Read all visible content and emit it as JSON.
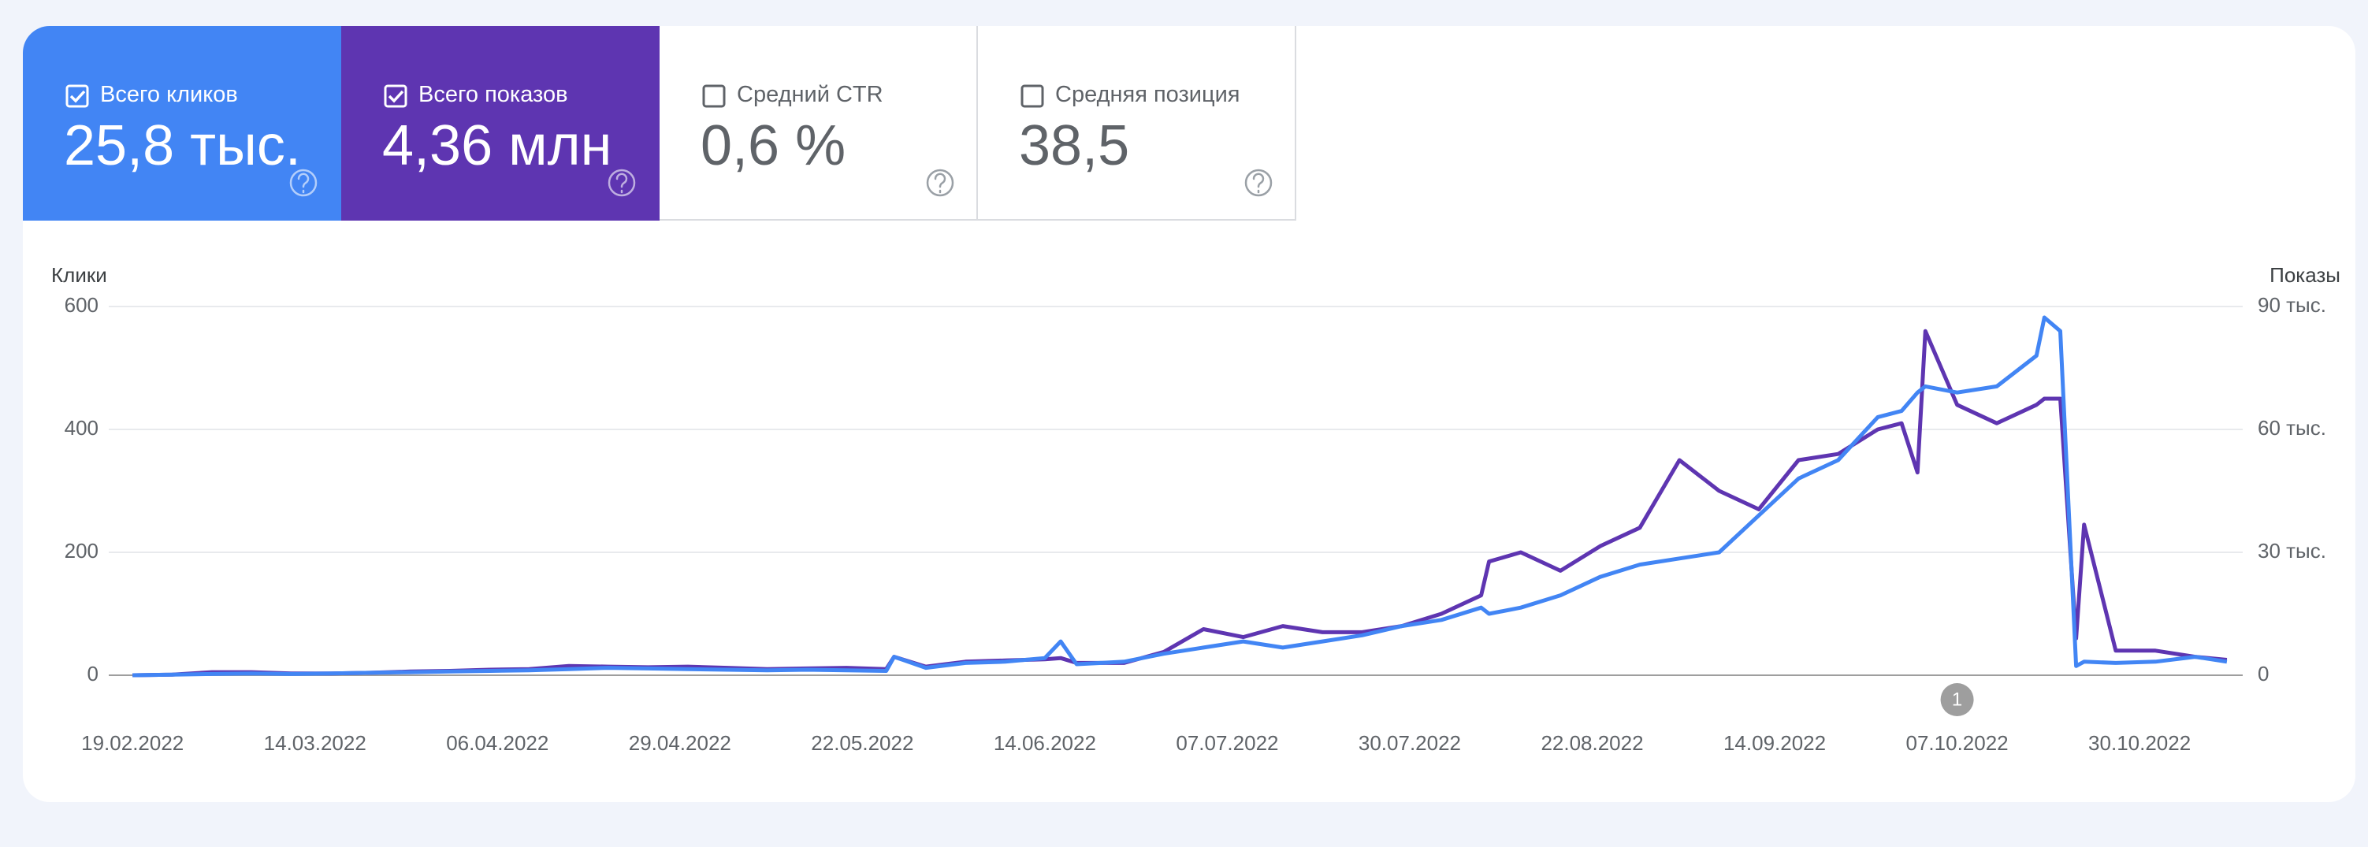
{
  "cards": [
    {
      "label": "Всего кликов",
      "value": "25,8 тыс.",
      "checked": true
    },
    {
      "label": "Всего показов",
      "value": "4,36 млн",
      "checked": true
    },
    {
      "label": "Средний CTR",
      "value": "0,6 %",
      "checked": false
    },
    {
      "label": "Средняя позиция",
      "value": "38,5",
      "checked": false
    }
  ],
  "chart_data": {
    "type": "line",
    "y_label": "Клики",
    "y2_label": "Показы",
    "x": [
      "19.02.2022",
      "24.02.2022",
      "01.03.2022",
      "06.03.2022",
      "11.03.2022",
      "16.03.2022",
      "21.03.2022",
      "26.03.2022",
      "31.03.2022",
      "05.04.2022",
      "10.04.2022",
      "15.04.2022",
      "20.04.2022",
      "25.04.2022",
      "30.04.2022",
      "05.05.2022",
      "10.05.2022",
      "15.05.2022",
      "20.05.2022",
      "25.05.2022",
      "26.05.2022",
      "30.05.2022",
      "04.06.2022",
      "09.06.2022",
      "14.06.2022",
      "16.06.2022",
      "18.06.2022",
      "24.06.2022",
      "29.06.2022",
      "04.07.2022",
      "09.07.2022",
      "14.07.2022",
      "19.07.2022",
      "24.07.2022",
      "29.07.2022",
      "03.08.2022",
      "08.08.2022",
      "09.08.2022",
      "13.08.2022",
      "18.08.2022",
      "23.08.2022",
      "28.08.2022",
      "02.09.2022",
      "07.09.2022",
      "12.09.2022",
      "17.09.2022",
      "22.09.2022",
      "27.09.2022",
      "30.09.2022",
      "02.10.2022",
      "03.10.2022",
      "07.10.2022",
      "12.10.2022",
      "17.10.2022",
      "18.10.2022",
      "20.10.2022",
      "22.10.2022",
      "23.10.2022",
      "27.10.2022",
      "01.11.2022",
      "06.11.2022",
      "10.11.2022"
    ],
    "series": [
      {
        "name": "Всего кликов",
        "color": "#4285f4",
        "values": [
          0,
          1,
          2,
          3,
          2,
          3,
          4,
          5,
          6,
          7,
          8,
          10,
          12,
          11,
          10,
          9,
          8,
          9,
          8,
          7,
          30,
          12,
          20,
          22,
          28,
          55,
          18,
          22,
          35,
          45,
          55,
          45,
          55,
          65,
          80,
          90,
          110,
          100,
          110,
          130,
          160,
          180,
          190,
          200,
          260,
          320,
          350,
          420,
          430,
          460,
          470,
          460,
          470,
          520,
          582,
          560,
          15,
          22,
          20,
          22,
          30,
          22
        ]
      },
      {
        "name": "Всего показов",
        "color": "#5e35b1",
        "axis": "y2",
        "values": [
          0,
          150,
          750,
          750,
          450,
          450,
          600,
          900,
          1050,
          1350,
          1500,
          2250,
          2100,
          1950,
          2100,
          1800,
          1500,
          1650,
          1800,
          1500,
          4500,
          2100,
          3300,
          3600,
          3900,
          4200,
          3000,
          3000,
          5700,
          11250,
          9300,
          12000,
          10500,
          10500,
          12000,
          15000,
          19500,
          27750,
          30000,
          25500,
          31500,
          36000,
          52500,
          45000,
          40500,
          52500,
          54000,
          60000,
          61500,
          49500,
          84000,
          66000,
          61500,
          66000,
          67500,
          67500,
          9000,
          36750,
          6000,
          6000,
          4500,
          3750
        ]
      }
    ],
    "xlim": [
      "16.02.2022",
      "12.11.2022"
    ],
    "xticks": [
      "19.02.2022",
      "14.03.2022",
      "06.04.2022",
      "29.04.2022",
      "22.05.2022",
      "14.06.2022",
      "07.07.2022",
      "30.07.2022",
      "22.08.2022",
      "14.09.2022",
      "07.10.2022",
      "30.10.2022"
    ],
    "ylim": [
      0,
      600
    ],
    "yticks": [
      0,
      200,
      400,
      600
    ],
    "y2lim": [
      0,
      90000
    ],
    "y2ticks": [
      0,
      {
        "value": 30000,
        "label": "30 тыс."
      },
      {
        "value": 60000,
        "label": "60 тыс."
      },
      {
        "value": 90000,
        "label": "90 тыс."
      }
    ],
    "grid": true,
    "annotations": [
      {
        "x": "07.10.2022",
        "label": "1"
      }
    ]
  }
}
